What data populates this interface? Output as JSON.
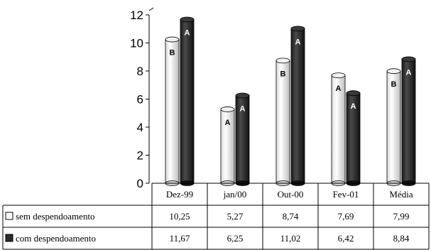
{
  "chart_data": {
    "type": "bar",
    "style": "3d-cylinder",
    "categories": [
      "Dez-99",
      "jan/00",
      "Out-00",
      "Fev-01",
      "Média"
    ],
    "ylim": [
      0,
      12
    ],
    "yticks": [
      0,
      2,
      4,
      6,
      8,
      10,
      12
    ],
    "grid": false,
    "legend": "table-below",
    "series": [
      {
        "name": "sem despendoamento",
        "color": "#ffffff",
        "values": [
          10.25,
          5.27,
          8.74,
          7.69,
          7.99
        ],
        "value_labels": [
          "10,25",
          "5,27",
          "8,74",
          "7,69",
          "7,99"
        ],
        "letters": [
          "B",
          "A",
          "B",
          "A",
          "B"
        ]
      },
      {
        "name": "com despendoamento",
        "color": "#2b2b2b",
        "values": [
          11.67,
          6.25,
          11.02,
          6.42,
          8.84
        ],
        "value_labels": [
          "11,67",
          "6,25",
          "11,02",
          "6,42",
          "8,84"
        ],
        "letters": [
          "A",
          "A",
          "A",
          "A",
          "A"
        ]
      }
    ]
  }
}
